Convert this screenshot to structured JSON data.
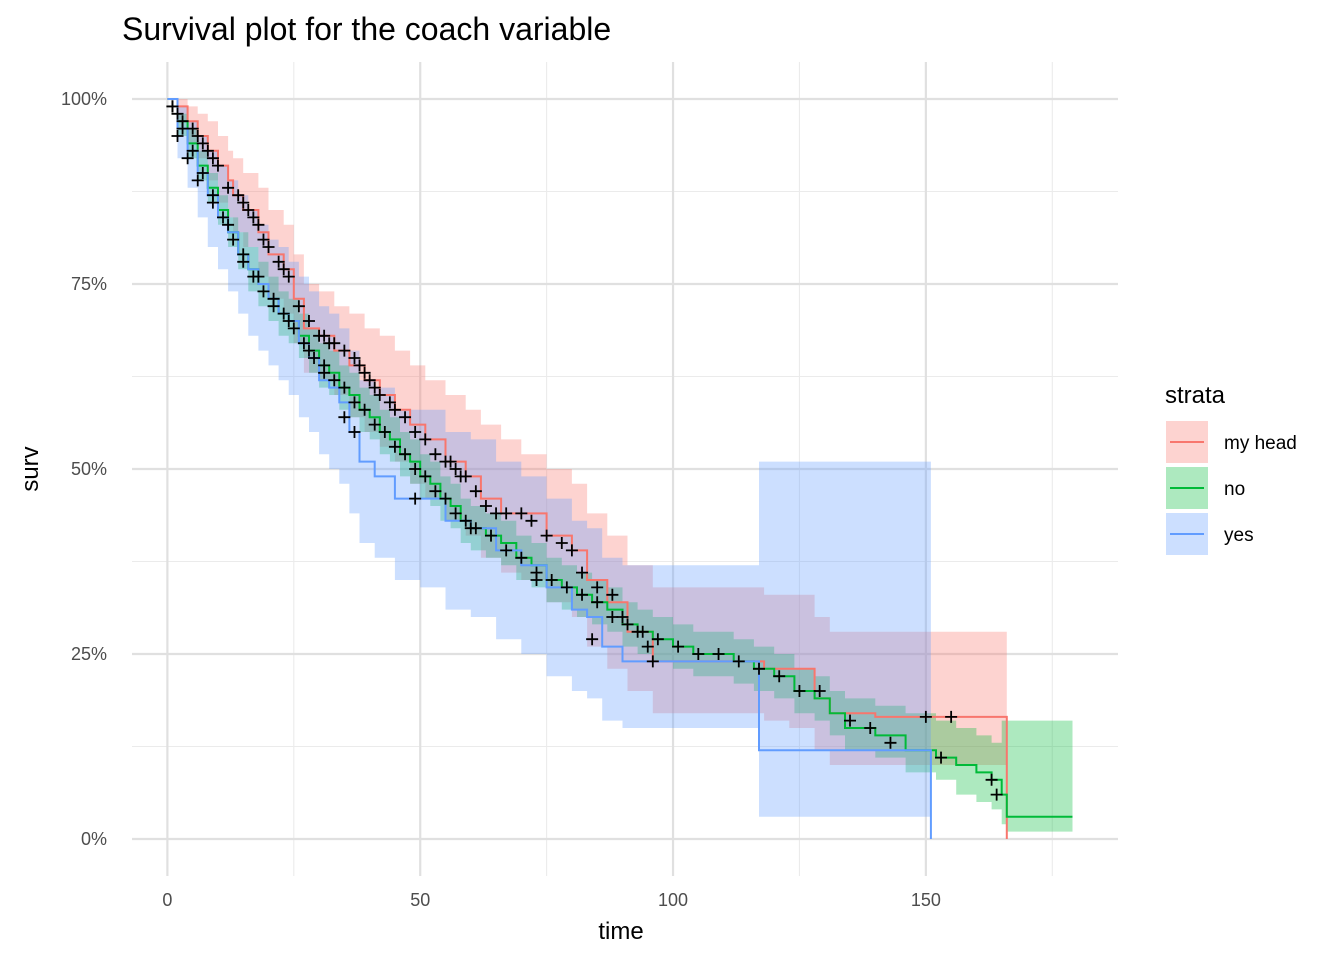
{
  "chart_data": {
    "type": "line",
    "title": "Survival plot for the coach variable",
    "xlabel": "time",
    "ylabel": "surv",
    "xlim": [
      -7,
      188
    ],
    "ylim": [
      -0.05,
      1.05
    ],
    "x_ticks": [
      0,
      50,
      100,
      150
    ],
    "x_tick_labels": [
      "0",
      "50",
      "100",
      "150"
    ],
    "x_minor": [
      25,
      75,
      125,
      175
    ],
    "y_ticks": [
      0,
      0.25,
      0.5,
      0.75,
      1.0
    ],
    "y_tick_labels": [
      "0%",
      "25%",
      "50%",
      "75%",
      "100%"
    ],
    "y_minor": [
      0.125,
      0.375,
      0.625,
      0.875
    ],
    "grid": true,
    "legend": {
      "title": "strata",
      "position": "right"
    },
    "series": [
      {
        "name": "my head",
        "color": "#F8766D",
        "x": [
          0,
          2,
          4,
          6,
          8,
          10,
          12,
          13,
          15,
          18,
          20,
          23,
          25,
          27,
          30,
          33,
          36,
          39,
          42,
          45,
          48,
          51,
          55,
          59,
          62,
          66,
          70,
          75,
          80,
          83,
          87,
          91,
          96,
          101,
          107,
          113,
          118,
          123,
          128,
          131,
          140,
          150,
          160,
          166,
          166
        ],
        "surv": [
          1.0,
          0.99,
          0.97,
          0.95,
          0.93,
          0.91,
          0.89,
          0.87,
          0.85,
          0.82,
          0.79,
          0.77,
          0.73,
          0.69,
          0.68,
          0.66,
          0.64,
          0.62,
          0.6,
          0.58,
          0.56,
          0.54,
          0.51,
          0.49,
          0.46,
          0.44,
          0.44,
          0.41,
          0.39,
          0.35,
          0.32,
          0.28,
          0.24,
          0.24,
          0.24,
          0.24,
          0.23,
          0.23,
          0.19,
          0.17,
          0.165,
          0.165,
          0.165,
          0.165,
          0.0
        ],
        "upper": [
          1.0,
          1.0,
          0.99,
          0.98,
          0.97,
          0.95,
          0.93,
          0.92,
          0.9,
          0.88,
          0.85,
          0.83,
          0.79,
          0.75,
          0.74,
          0.72,
          0.71,
          0.69,
          0.68,
          0.66,
          0.64,
          0.62,
          0.6,
          0.58,
          0.56,
          0.54,
          0.52,
          0.5,
          0.48,
          0.44,
          0.41,
          0.37,
          0.34,
          0.34,
          0.34,
          0.34,
          0.33,
          0.33,
          0.3,
          0.28,
          0.28,
          0.28,
          0.28,
          0.28,
          0.28
        ],
        "lower": [
          1.0,
          0.97,
          0.94,
          0.92,
          0.89,
          0.86,
          0.84,
          0.82,
          0.8,
          0.76,
          0.73,
          0.71,
          0.67,
          0.63,
          0.62,
          0.6,
          0.57,
          0.55,
          0.53,
          0.51,
          0.48,
          0.46,
          0.43,
          0.41,
          0.38,
          0.36,
          0.35,
          0.32,
          0.3,
          0.26,
          0.23,
          0.2,
          0.17,
          0.17,
          0.17,
          0.17,
          0.16,
          0.15,
          0.12,
          0.1,
          0.1,
          0.1,
          0.1,
          0.1,
          0.1
        ],
        "censor_x": [
          1,
          2,
          3,
          5,
          6,
          7,
          8,
          9,
          10,
          12,
          14,
          15,
          16,
          17,
          18,
          19,
          20,
          22,
          23,
          24,
          26,
          28,
          30,
          31,
          32,
          33,
          35,
          37,
          38,
          39,
          40,
          41,
          42,
          44,
          45,
          47,
          49,
          51,
          53,
          55,
          56,
          57,
          58,
          59,
          61,
          63,
          65,
          67,
          70,
          72,
          75,
          78,
          80,
          82,
          85,
          88,
          90,
          93,
          95,
          150,
          155
        ],
        "censor_y": [
          0.99,
          0.98,
          0.97,
          0.96,
          0.95,
          0.94,
          0.93,
          0.92,
          0.91,
          0.88,
          0.87,
          0.86,
          0.85,
          0.84,
          0.83,
          0.81,
          0.8,
          0.78,
          0.77,
          0.76,
          0.72,
          0.7,
          0.68,
          0.68,
          0.67,
          0.67,
          0.66,
          0.65,
          0.64,
          0.63,
          0.62,
          0.61,
          0.6,
          0.59,
          0.58,
          0.57,
          0.55,
          0.54,
          0.52,
          0.51,
          0.51,
          0.5,
          0.49,
          0.49,
          0.47,
          0.45,
          0.44,
          0.44,
          0.44,
          0.43,
          0.41,
          0.4,
          0.39,
          0.36,
          0.34,
          0.33,
          0.3,
          0.28,
          0.26,
          0.165,
          0.165
        ]
      },
      {
        "name": "no",
        "color": "#00BA38",
        "x": [
          0,
          2,
          4,
          6,
          8,
          10,
          12,
          14,
          16,
          18,
          20,
          22,
          24,
          26,
          28,
          30,
          32,
          34,
          36,
          38,
          40,
          42,
          44,
          46,
          48,
          50,
          52,
          54,
          56,
          58,
          60,
          63,
          66,
          69,
          72,
          75,
          78,
          81,
          84,
          87,
          90,
          93,
          96,
          100,
          104,
          108,
          112,
          116,
          120,
          124,
          128,
          131,
          134,
          140,
          146,
          152,
          156,
          160,
          163,
          165,
          166,
          179
        ],
        "surv": [
          1.0,
          0.97,
          0.94,
          0.91,
          0.88,
          0.85,
          0.82,
          0.79,
          0.77,
          0.75,
          0.73,
          0.71,
          0.7,
          0.68,
          0.66,
          0.64,
          0.63,
          0.61,
          0.6,
          0.58,
          0.57,
          0.55,
          0.54,
          0.52,
          0.51,
          0.49,
          0.48,
          0.46,
          0.45,
          0.43,
          0.42,
          0.41,
          0.4,
          0.38,
          0.37,
          0.35,
          0.34,
          0.33,
          0.32,
          0.31,
          0.29,
          0.28,
          0.27,
          0.26,
          0.25,
          0.25,
          0.24,
          0.23,
          0.22,
          0.2,
          0.19,
          0.17,
          0.15,
          0.14,
          0.12,
          0.11,
          0.1,
          0.09,
          0.08,
          0.06,
          0.03,
          0.03
        ],
        "upper": [
          1.0,
          0.98,
          0.96,
          0.93,
          0.9,
          0.87,
          0.84,
          0.82,
          0.8,
          0.78,
          0.76,
          0.74,
          0.73,
          0.71,
          0.69,
          0.67,
          0.66,
          0.64,
          0.63,
          0.61,
          0.6,
          0.58,
          0.57,
          0.55,
          0.54,
          0.52,
          0.51,
          0.49,
          0.48,
          0.46,
          0.45,
          0.44,
          0.43,
          0.41,
          0.4,
          0.38,
          0.37,
          0.36,
          0.35,
          0.34,
          0.32,
          0.31,
          0.3,
          0.29,
          0.28,
          0.28,
          0.27,
          0.26,
          0.25,
          0.23,
          0.22,
          0.2,
          0.19,
          0.18,
          0.17,
          0.16,
          0.15,
          0.14,
          0.13,
          0.16,
          0.16,
          0.16
        ],
        "lower": [
          1.0,
          0.95,
          0.92,
          0.89,
          0.86,
          0.83,
          0.8,
          0.77,
          0.74,
          0.72,
          0.7,
          0.68,
          0.67,
          0.65,
          0.63,
          0.61,
          0.6,
          0.58,
          0.57,
          0.55,
          0.54,
          0.52,
          0.51,
          0.49,
          0.48,
          0.46,
          0.45,
          0.43,
          0.42,
          0.4,
          0.39,
          0.38,
          0.37,
          0.35,
          0.34,
          0.32,
          0.31,
          0.3,
          0.29,
          0.28,
          0.26,
          0.25,
          0.24,
          0.23,
          0.22,
          0.22,
          0.21,
          0.2,
          0.19,
          0.17,
          0.16,
          0.14,
          0.12,
          0.11,
          0.09,
          0.08,
          0.06,
          0.05,
          0.04,
          0.02,
          0.01,
          0.01
        ],
        "censor_x": [
          1,
          3,
          5,
          7,
          9,
          11,
          13,
          15,
          17,
          19,
          21,
          23,
          25,
          27,
          29,
          31,
          33,
          35,
          37,
          39,
          41,
          43,
          45,
          47,
          49,
          51,
          53,
          55,
          57,
          59,
          61,
          64,
          67,
          70,
          73,
          76,
          79,
          82,
          85,
          88,
          91,
          94,
          97,
          101,
          105,
          109,
          113,
          117,
          121,
          125,
          129,
          135,
          139,
          143,
          153,
          163,
          164
        ],
        "censor_y": [
          0.99,
          0.96,
          0.93,
          0.9,
          0.87,
          0.84,
          0.81,
          0.78,
          0.76,
          0.74,
          0.72,
          0.71,
          0.69,
          0.67,
          0.65,
          0.64,
          0.62,
          0.61,
          0.59,
          0.58,
          0.56,
          0.55,
          0.53,
          0.52,
          0.5,
          0.49,
          0.47,
          0.46,
          0.44,
          0.43,
          0.42,
          0.41,
          0.39,
          0.38,
          0.36,
          0.35,
          0.34,
          0.33,
          0.32,
          0.3,
          0.29,
          0.28,
          0.27,
          0.26,
          0.25,
          0.25,
          0.24,
          0.23,
          0.22,
          0.2,
          0.2,
          0.16,
          0.15,
          0.13,
          0.11,
          0.08,
          0.06
        ]
      },
      {
        "name": "yes",
        "color": "#619CFF",
        "x": [
          0,
          2,
          4,
          6,
          8,
          10,
          12,
          14,
          16,
          18,
          20,
          22,
          24,
          26,
          28,
          30,
          32,
          34,
          36,
          38,
          41,
          45,
          50,
          55,
          60,
          65,
          70,
          75,
          80,
          83,
          86,
          90,
          95,
          100,
          108,
          117,
          151,
          151
        ],
        "surv": [
          1.0,
          0.96,
          0.93,
          0.9,
          0.87,
          0.84,
          0.82,
          0.79,
          0.77,
          0.75,
          0.73,
          0.71,
          0.7,
          0.67,
          0.65,
          0.62,
          0.61,
          0.59,
          0.55,
          0.51,
          0.49,
          0.46,
          0.46,
          0.43,
          0.42,
          0.39,
          0.37,
          0.34,
          0.31,
          0.3,
          0.26,
          0.24,
          0.24,
          0.24,
          0.24,
          0.12,
          0.12,
          0.0
        ],
        "upper": [
          1.0,
          0.99,
          0.97,
          0.95,
          0.93,
          0.91,
          0.89,
          0.87,
          0.85,
          0.83,
          0.81,
          0.8,
          0.78,
          0.76,
          0.74,
          0.72,
          0.71,
          0.69,
          0.66,
          0.62,
          0.61,
          0.58,
          0.58,
          0.55,
          0.54,
          0.51,
          0.49,
          0.46,
          0.43,
          0.42,
          0.38,
          0.37,
          0.37,
          0.37,
          0.37,
          0.51,
          0.51,
          0.51
        ],
        "lower": [
          1.0,
          0.92,
          0.88,
          0.84,
          0.8,
          0.77,
          0.74,
          0.71,
          0.68,
          0.66,
          0.64,
          0.62,
          0.6,
          0.57,
          0.55,
          0.52,
          0.5,
          0.48,
          0.44,
          0.4,
          0.38,
          0.35,
          0.34,
          0.31,
          0.3,
          0.27,
          0.25,
          0.22,
          0.2,
          0.19,
          0.16,
          0.15,
          0.15,
          0.15,
          0.15,
          0.03,
          0.03,
          0.03
        ],
        "censor_x": [
          2,
          4,
          6,
          9,
          12,
          15,
          18,
          21,
          24,
          28,
          31,
          35,
          37,
          49,
          60,
          73,
          84,
          96
        ],
        "censor_y": [
          0.95,
          0.92,
          0.89,
          0.86,
          0.83,
          0.79,
          0.76,
          0.73,
          0.7,
          0.66,
          0.63,
          0.57,
          0.55,
          0.46,
          0.42,
          0.35,
          0.27,
          0.24
        ]
      }
    ]
  }
}
